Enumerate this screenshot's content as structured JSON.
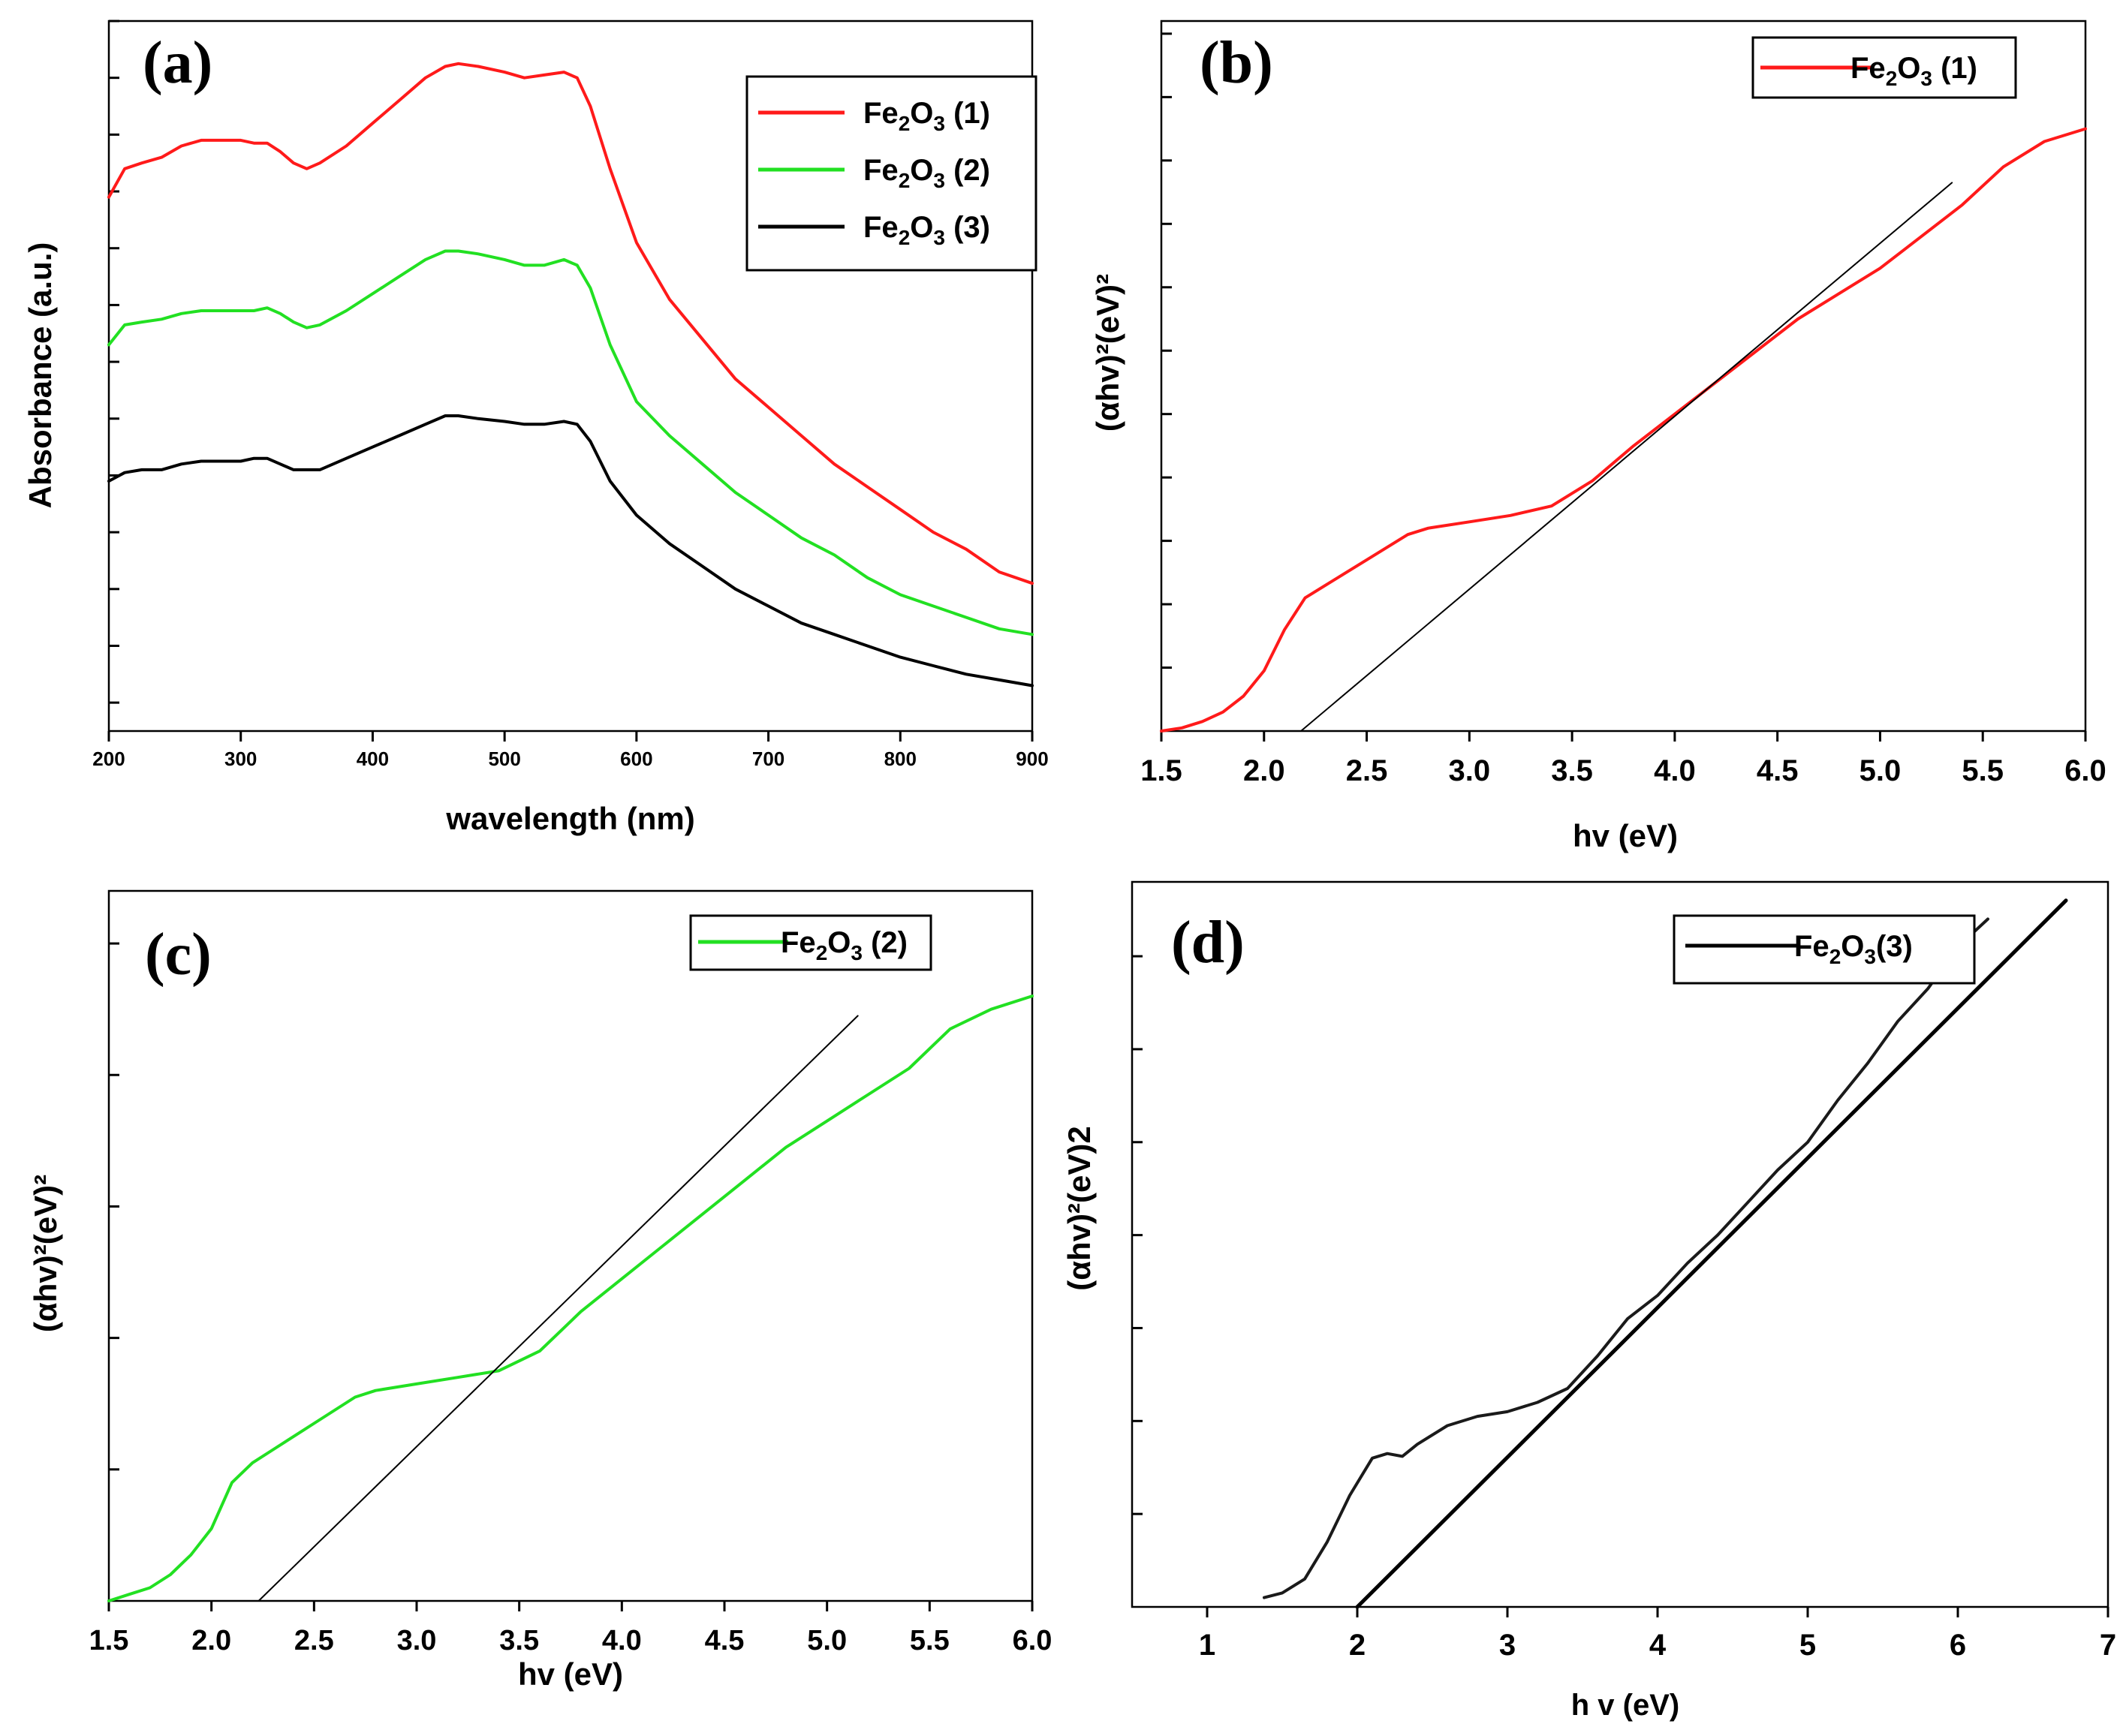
{
  "chart_data": [
    {
      "panel": "(a)",
      "type": "line",
      "title": "",
      "xlabel": "wavelength (nm)",
      "ylabel": "Absorbance (a.u.)",
      "xlim": [
        200,
        900
      ],
      "ylim": [
        0,
        1.25
      ],
      "xticks": [
        200,
        300,
        400,
        500,
        600,
        700,
        800,
        900
      ],
      "xtick_labels": [
        "200",
        "300",
        "400",
        "500",
        "600",
        "700",
        "800",
        "900"
      ],
      "ytick_values": [
        0.05,
        0.15,
        0.25,
        0.35,
        0.45,
        0.55,
        0.65,
        0.75,
        0.85,
        0.95,
        1.05,
        1.15,
        1.25
      ],
      "legend_position": "top-right",
      "legend": [
        {
          "name": "Fe",
          "sub1": "2",
          "mid": "O",
          "sub2": "3",
          "suffix": " (1)",
          "color": "#ff1a1a"
        },
        {
          "name": "Fe",
          "sub1": "2",
          "mid": "O",
          "sub2": "3",
          "suffix": " (2)",
          "color": "#22e022"
        },
        {
          "name": "Fe",
          "sub1": "2",
          "mid": "O",
          "sub2": "3",
          "suffix": " (3)",
          "color": "#000000"
        }
      ],
      "series": [
        {
          "name": "Fe2O3 (1)",
          "color": "#ff1a1a",
          "x": [
            200,
            212,
            225,
            240,
            255,
            270,
            285,
            300,
            310,
            320,
            330,
            340,
            350,
            360,
            380,
            400,
            420,
            440,
            455,
            465,
            480,
            500,
            515,
            530,
            545,
            555,
            565,
            580,
            600,
            625,
            650,
            675,
            700,
            725,
            750,
            775,
            800,
            825,
            850,
            875,
            900
          ],
          "y": [
            0.94,
            0.99,
            1.0,
            1.01,
            1.03,
            1.04,
            1.04,
            1.04,
            1.035,
            1.035,
            1.02,
            1.0,
            0.99,
            1.0,
            1.03,
            1.07,
            1.11,
            1.15,
            1.17,
            1.175,
            1.17,
            1.16,
            1.15,
            1.155,
            1.16,
            1.15,
            1.1,
            0.99,
            0.86,
            0.76,
            0.69,
            0.62,
            0.57,
            0.52,
            0.47,
            0.43,
            0.39,
            0.35,
            0.32,
            0.28,
            0.26
          ]
        },
        {
          "name": "Fe2O3 (2)",
          "color": "#22e022",
          "x": [
            200,
            212,
            225,
            240,
            255,
            270,
            285,
            300,
            310,
            320,
            330,
            340,
            350,
            360,
            380,
            400,
            420,
            440,
            455,
            465,
            480,
            500,
            515,
            530,
            545,
            555,
            565,
            580,
            600,
            625,
            650,
            675,
            700,
            725,
            750,
            775,
            800,
            825,
            850,
            875,
            900
          ],
          "y": [
            0.68,
            0.715,
            0.72,
            0.725,
            0.735,
            0.74,
            0.74,
            0.74,
            0.74,
            0.745,
            0.735,
            0.72,
            0.71,
            0.715,
            0.74,
            0.77,
            0.8,
            0.83,
            0.845,
            0.845,
            0.84,
            0.83,
            0.82,
            0.82,
            0.83,
            0.82,
            0.78,
            0.68,
            0.58,
            0.52,
            0.47,
            0.42,
            0.38,
            0.34,
            0.31,
            0.27,
            0.24,
            0.22,
            0.2,
            0.18,
            0.17
          ]
        },
        {
          "name": "Fe2O3 (3)",
          "color": "#000000",
          "x": [
            200,
            212,
            225,
            240,
            255,
            270,
            285,
            300,
            310,
            320,
            330,
            340,
            350,
            360,
            380,
            400,
            420,
            440,
            455,
            465,
            480,
            500,
            515,
            530,
            545,
            555,
            565,
            580,
            600,
            625,
            650,
            675,
            700,
            725,
            750,
            775,
            800,
            825,
            850,
            875,
            900
          ],
          "y": [
            0.44,
            0.455,
            0.46,
            0.46,
            0.47,
            0.475,
            0.475,
            0.475,
            0.48,
            0.48,
            0.47,
            0.46,
            0.46,
            0.46,
            0.48,
            0.5,
            0.52,
            0.54,
            0.555,
            0.555,
            0.55,
            0.545,
            0.54,
            0.54,
            0.545,
            0.54,
            0.51,
            0.44,
            0.38,
            0.33,
            0.29,
            0.25,
            0.22,
            0.19,
            0.17,
            0.15,
            0.13,
            0.115,
            0.1,
            0.09,
            0.08
          ]
        }
      ]
    },
    {
      "panel": "(b)",
      "type": "line",
      "title": "",
      "xlabel": "hv (eV)",
      "ylabel": "(αhv)²(eV)²",
      "xlim": [
        1.5,
        6.0
      ],
      "ylim": [
        0,
        11.2
      ],
      "xticks": [
        1.5,
        2.0,
        2.5,
        3.0,
        3.5,
        4.0,
        4.5,
        5.0,
        5.5,
        6.0
      ],
      "xtick_labels": [
        "1.5",
        "2.0",
        "2.5",
        "3.0",
        "3.5",
        "4.0",
        "4.5",
        "5.0",
        "5.5",
        "6.0"
      ],
      "ytick_values": [
        1,
        2,
        3,
        4,
        5,
        6,
        7,
        8,
        9,
        10,
        11
      ],
      "legend_position": "top-right",
      "legend": [
        {
          "name": "Fe",
          "sub1": "2",
          "mid": "O",
          "sub2": "3",
          "suffix": " (1)",
          "color": "#ff1a1a"
        }
      ],
      "series": [
        {
          "name": "Fe2O3 (1)",
          "color": "#ff1a1a",
          "x": [
            1.5,
            1.6,
            1.7,
            1.8,
            1.9,
            2.0,
            2.1,
            2.2,
            2.3,
            2.5,
            2.7,
            2.8,
            3.0,
            3.2,
            3.4,
            3.6,
            3.8,
            4.0,
            4.2,
            4.4,
            4.6,
            4.8,
            5.0,
            5.2,
            5.4,
            5.6,
            5.8,
            6.0
          ],
          "y": [
            0.0,
            0.05,
            0.15,
            0.3,
            0.55,
            0.95,
            1.6,
            2.1,
            2.3,
            2.7,
            3.1,
            3.2,
            3.3,
            3.4,
            3.55,
            3.95,
            4.5,
            5.0,
            5.5,
            6.0,
            6.5,
            6.9,
            7.3,
            7.8,
            8.3,
            8.9,
            9.3,
            9.5
          ]
        },
        {
          "name": "tangent",
          "color": "#000000",
          "linear": true,
          "x": [
            2.18,
            5.35
          ],
          "y": [
            0.0,
            8.65
          ]
        }
      ]
    },
    {
      "panel": "(c)",
      "type": "line",
      "title": "",
      "xlabel": "hv (eV)",
      "ylabel": "(αhv)²(eV)²",
      "xlim": [
        1.5,
        6.0
      ],
      "ylim": [
        0,
        5.4
      ],
      "xticks": [
        1.5,
        2.0,
        2.5,
        3.0,
        3.5,
        4.0,
        4.5,
        5.0,
        5.5,
        6.0
      ],
      "xtick_labels": [
        "1.5",
        "2.0",
        "2.5",
        "3.0",
        "3.5",
        "4.0",
        "4.5",
        "5.0",
        "5.5",
        "6.0"
      ],
      "ytick_values": [
        1,
        2,
        3,
        4,
        5
      ],
      "legend_position": "top-right",
      "legend": [
        {
          "name": "Fe",
          "sub1": "2",
          "mid": "O",
          "sub2": "3",
          "suffix": " (2)",
          "color": "#22e022"
        }
      ],
      "series": [
        {
          "name": "Fe2O3 (2)",
          "color": "#22e022",
          "x": [
            1.5,
            1.6,
            1.7,
            1.8,
            1.9,
            2.0,
            2.1,
            2.2,
            2.3,
            2.5,
            2.7,
            2.8,
            3.0,
            3.2,
            3.4,
            3.6,
            3.8,
            4.0,
            4.2,
            4.4,
            4.6,
            4.8,
            5.0,
            5.2,
            5.4,
            5.6,
            5.8,
            6.0
          ],
          "y": [
            0.0,
            0.05,
            0.1,
            0.2,
            0.35,
            0.55,
            0.9,
            1.05,
            1.15,
            1.35,
            1.55,
            1.6,
            1.65,
            1.7,
            1.75,
            1.9,
            2.2,
            2.45,
            2.7,
            2.95,
            3.2,
            3.45,
            3.65,
            3.85,
            4.05,
            4.35,
            4.5,
            4.6
          ]
        },
        {
          "name": "tangent",
          "color": "#000000",
          "linear": true,
          "x": [
            2.23,
            5.15
          ],
          "y": [
            0.0,
            4.45
          ]
        }
      ]
    },
    {
      "panel": "(d)",
      "type": "line",
      "title": "",
      "xlabel": "h v (eV)",
      "ylabel": "(αhv)²(eV)2",
      "xlim": [
        0.5,
        7.0
      ],
      "ylim": [
        0,
        7.8
      ],
      "xticks": [
        1,
        2,
        3,
        4,
        5,
        6,
        7
      ],
      "xtick_labels": [
        "1",
        "2",
        "3",
        "4",
        "5",
        "6",
        "7"
      ],
      "ytick_values": [
        1,
        2,
        3,
        4,
        5,
        6,
        7
      ],
      "legend_position": "top-right",
      "legend": [
        {
          "name": "Fe",
          "sub1": "2",
          "mid": "O",
          "sub2": "3",
          "suffix": "(3)",
          "color": "#000000"
        }
      ],
      "series": [
        {
          "name": "Fe2O3(3)",
          "color": "#1a1a1a",
          "x": [
            1.38,
            1.5,
            1.65,
            1.8,
            1.95,
            2.1,
            2.2,
            2.3,
            2.4,
            2.6,
            2.8,
            3.0,
            3.2,
            3.4,
            3.6,
            3.8,
            4.0,
            4.2,
            4.4,
            4.6,
            4.8,
            5.0,
            5.2,
            5.4,
            5.6,
            5.8,
            6.0,
            6.2
          ],
          "y": [
            0.1,
            0.15,
            0.3,
            0.7,
            1.2,
            1.6,
            1.65,
            1.62,
            1.75,
            1.95,
            2.05,
            2.1,
            2.2,
            2.35,
            2.7,
            3.1,
            3.35,
            3.7,
            4.0,
            4.35,
            4.7,
            5.0,
            5.45,
            5.85,
            6.3,
            6.65,
            7.1,
            7.4
          ]
        },
        {
          "name": "tangent",
          "color": "#000000",
          "linear": true,
          "x": [
            2.0,
            6.72
          ],
          "y": [
            0.0,
            7.6
          ]
        }
      ]
    }
  ]
}
